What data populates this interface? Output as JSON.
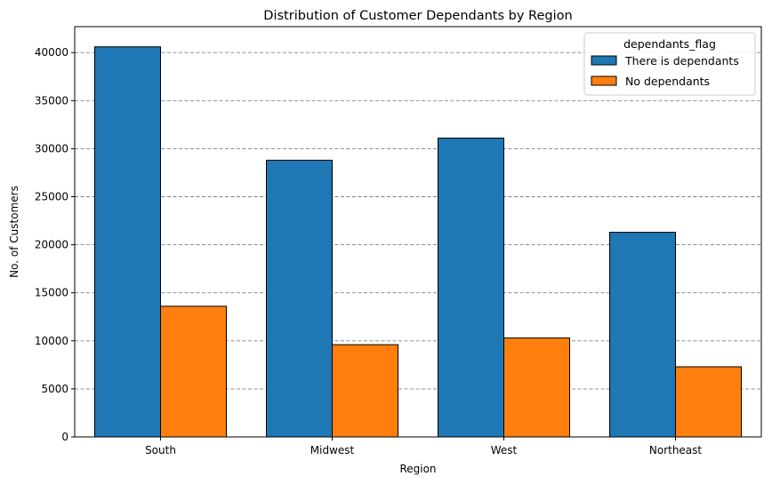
{
  "chart_data": {
    "type": "bar",
    "title": "Distribution of Customer Dependants by Region",
    "xlabel": "Region",
    "ylabel": "No. of Customers",
    "categories": [
      "South",
      "Midwest",
      "West",
      "Northeast"
    ],
    "series": [
      {
        "name": "There is dependants",
        "values": [
          40600,
          28800,
          31100,
          21300
        ],
        "color": "#1f77b4"
      },
      {
        "name": "No dependants",
        "values": [
          13600,
          9600,
          10300,
          7300
        ],
        "color": "#ff7f0e"
      }
    ],
    "ylim": [
      0,
      42700
    ],
    "yticks": [
      0,
      5000,
      10000,
      15000,
      20000,
      25000,
      30000,
      35000,
      40000
    ],
    "ytick_labels": [
      "0",
      "5000",
      "10000",
      "15000",
      "20000",
      "25000",
      "30000",
      "35000",
      "40000"
    ],
    "grid": "y, dashed",
    "legend": {
      "title": "dependants_flag",
      "placement": "top-right"
    }
  }
}
